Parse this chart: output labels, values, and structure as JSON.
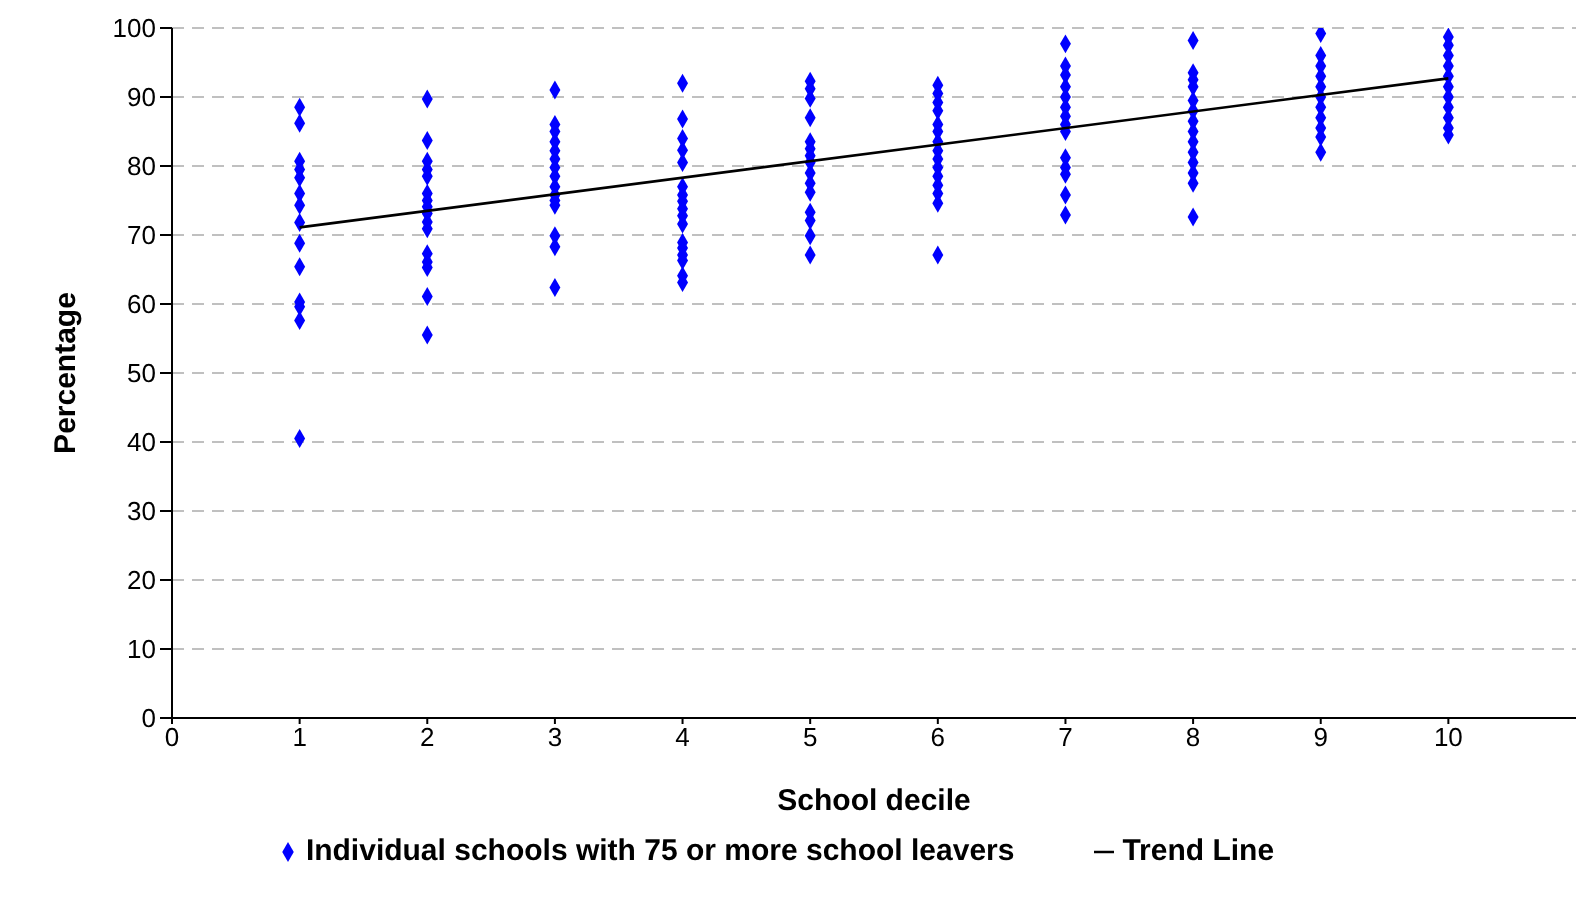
{
  "chart_data": {
    "type": "scatter",
    "xlabel": "School decile",
    "ylabel": "Percentage",
    "xlim": [
      0,
      11
    ],
    "xticks": [
      0,
      1,
      2,
      3,
      4,
      5,
      6,
      7,
      8,
      9,
      10
    ],
    "ylim": [
      0,
      100
    ],
    "yticks": [
      0,
      10,
      20,
      30,
      40,
      50,
      60,
      70,
      80,
      90,
      100
    ],
    "grid": "y",
    "legend": "bottom",
    "series": [
      {
        "name": "Individual schools with 75 or more school leavers",
        "color": "#0000ff",
        "marker": "diamond",
        "x": [
          1,
          1,
          1,
          1,
          1,
          1,
          1,
          1,
          1,
          1,
          1,
          1,
          1,
          1,
          2,
          2,
          2,
          2,
          2,
          2,
          2,
          2,
          2,
          2,
          2,
          2,
          2,
          2,
          2,
          2,
          3,
          3,
          3,
          3,
          3,
          3,
          3,
          3,
          3,
          3,
          3,
          3,
          3,
          3,
          3,
          4,
          4,
          4,
          4,
          4,
          4,
          4,
          4,
          4,
          4,
          4,
          4,
          4,
          4,
          4,
          4,
          4,
          5,
          5,
          5,
          5,
          5,
          5,
          5,
          5,
          5,
          5,
          5,
          5,
          5,
          5,
          5,
          6,
          6,
          6,
          6,
          6,
          6,
          6,
          6,
          6,
          6,
          6,
          6,
          6,
          6,
          6,
          7,
          7,
          7,
          7,
          7,
          7,
          7,
          7,
          7,
          7,
          7,
          7,
          7,
          7,
          8,
          8,
          8,
          8,
          8,
          8,
          8,
          8,
          8,
          8,
          8,
          8,
          8,
          8,
          9,
          9,
          9,
          9,
          9,
          9,
          9,
          9,
          9,
          9,
          9,
          10,
          10,
          10,
          10,
          10,
          10,
          10,
          10,
          10,
          10,
          10
        ],
        "values": [
          88.5,
          86.2,
          80.7,
          79.5,
          78.3,
          76.0,
          74.3,
          71.8,
          68.8,
          65.4,
          60.3,
          59.6,
          57.6,
          40.5,
          89.7,
          83.7,
          80.7,
          79.5,
          78.5,
          76.0,
          75.0,
          74.1,
          73.1,
          71.9,
          70.9,
          67.3,
          66.1,
          65.3,
          61.1,
          55.5,
          91.0,
          86.0,
          85.0,
          83.5,
          82.2,
          81.0,
          79.8,
          78.5,
          77.0,
          75.8,
          75.0,
          74.3,
          69.9,
          68.3,
          62.4,
          92.0,
          86.8,
          84.0,
          82.3,
          80.5,
          77.0,
          75.8,
          74.9,
          73.8,
          72.8,
          71.6,
          68.9,
          68.1,
          67.1,
          66.3,
          64.1,
          63.1,
          92.3,
          91.2,
          89.8,
          87.0,
          83.5,
          82.5,
          81.5,
          80.5,
          79.0,
          77.5,
          76.2,
          73.3,
          72.1,
          69.9,
          67.1,
          91.7,
          90.5,
          89.2,
          88.0,
          86.0,
          85.0,
          83.5,
          82.2,
          81.0,
          79.8,
          78.5,
          77.2,
          76.0,
          74.6,
          67.1,
          97.7,
          94.5,
          93.2,
          91.5,
          90.0,
          88.5,
          87.2,
          86.0,
          85.0,
          81.2,
          79.8,
          78.8,
          75.8,
          72.9,
          98.2,
          93.5,
          92.5,
          91.5,
          89.5,
          88.0,
          86.5,
          85.0,
          83.5,
          82.0,
          80.5,
          79.0,
          77.5,
          72.6,
          99.2,
          96.0,
          94.5,
          93.0,
          91.5,
          90.0,
          88.5,
          87.0,
          85.5,
          84.2,
          82.0,
          98.7,
          97.5,
          96.0,
          94.5,
          93.0,
          91.5,
          90.0,
          88.5,
          87.0,
          85.5,
          84.5
        ]
      },
      {
        "name": "Trend Line",
        "type": "line",
        "color": "#000000",
        "line_style": "solid",
        "marker": "none",
        "x": [
          1,
          10
        ],
        "values": [
          71.1,
          92.7
        ]
      }
    ]
  }
}
